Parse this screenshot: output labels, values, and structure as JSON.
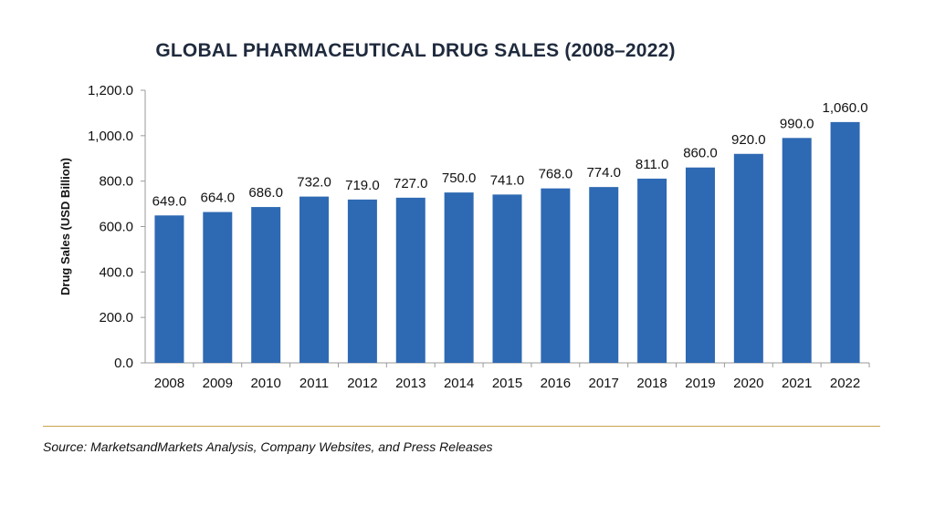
{
  "chart_data": {
    "type": "bar",
    "title": "GLOBAL PHARMACEUTICAL DRUG SALES (2008–2022)",
    "xlabel": "",
    "ylabel": "Drug Sales (USD Billion)",
    "categories": [
      "2008",
      "2009",
      "2010",
      "2011",
      "2012",
      "2013",
      "2014",
      "2015",
      "2016",
      "2017",
      "2018",
      "2019",
      "2020",
      "2021",
      "2022"
    ],
    "values": [
      649.0,
      664.0,
      686.0,
      732.0,
      719.0,
      727.0,
      750.0,
      741.0,
      768.0,
      774.0,
      811.0,
      860.0,
      920.0,
      990.0,
      1060.0
    ],
    "data_labels": [
      "649.0",
      "664.0",
      "686.0",
      "732.0",
      "719.0",
      "727.0",
      "750.0",
      "741.0",
      "768.0",
      "774.0",
      "811.0",
      "860.0",
      "920.0",
      "990.0",
      "1,060.0"
    ],
    "ylim": [
      0,
      1200
    ],
    "yticks": [
      0,
      200,
      400,
      600,
      800,
      1000,
      1200
    ],
    "ytick_labels": [
      "0.0",
      "200.0",
      "400.0",
      "600.0",
      "800.0",
      "1,000.0",
      "1,200.0"
    ],
    "grid": false,
    "legend": "none",
    "bar_color": "#2e69b3"
  },
  "source_note": "Source: MarketsandMarkets Analysis, Company Websites, and Press Releases",
  "colors": {
    "divider": "#c9a44a"
  }
}
